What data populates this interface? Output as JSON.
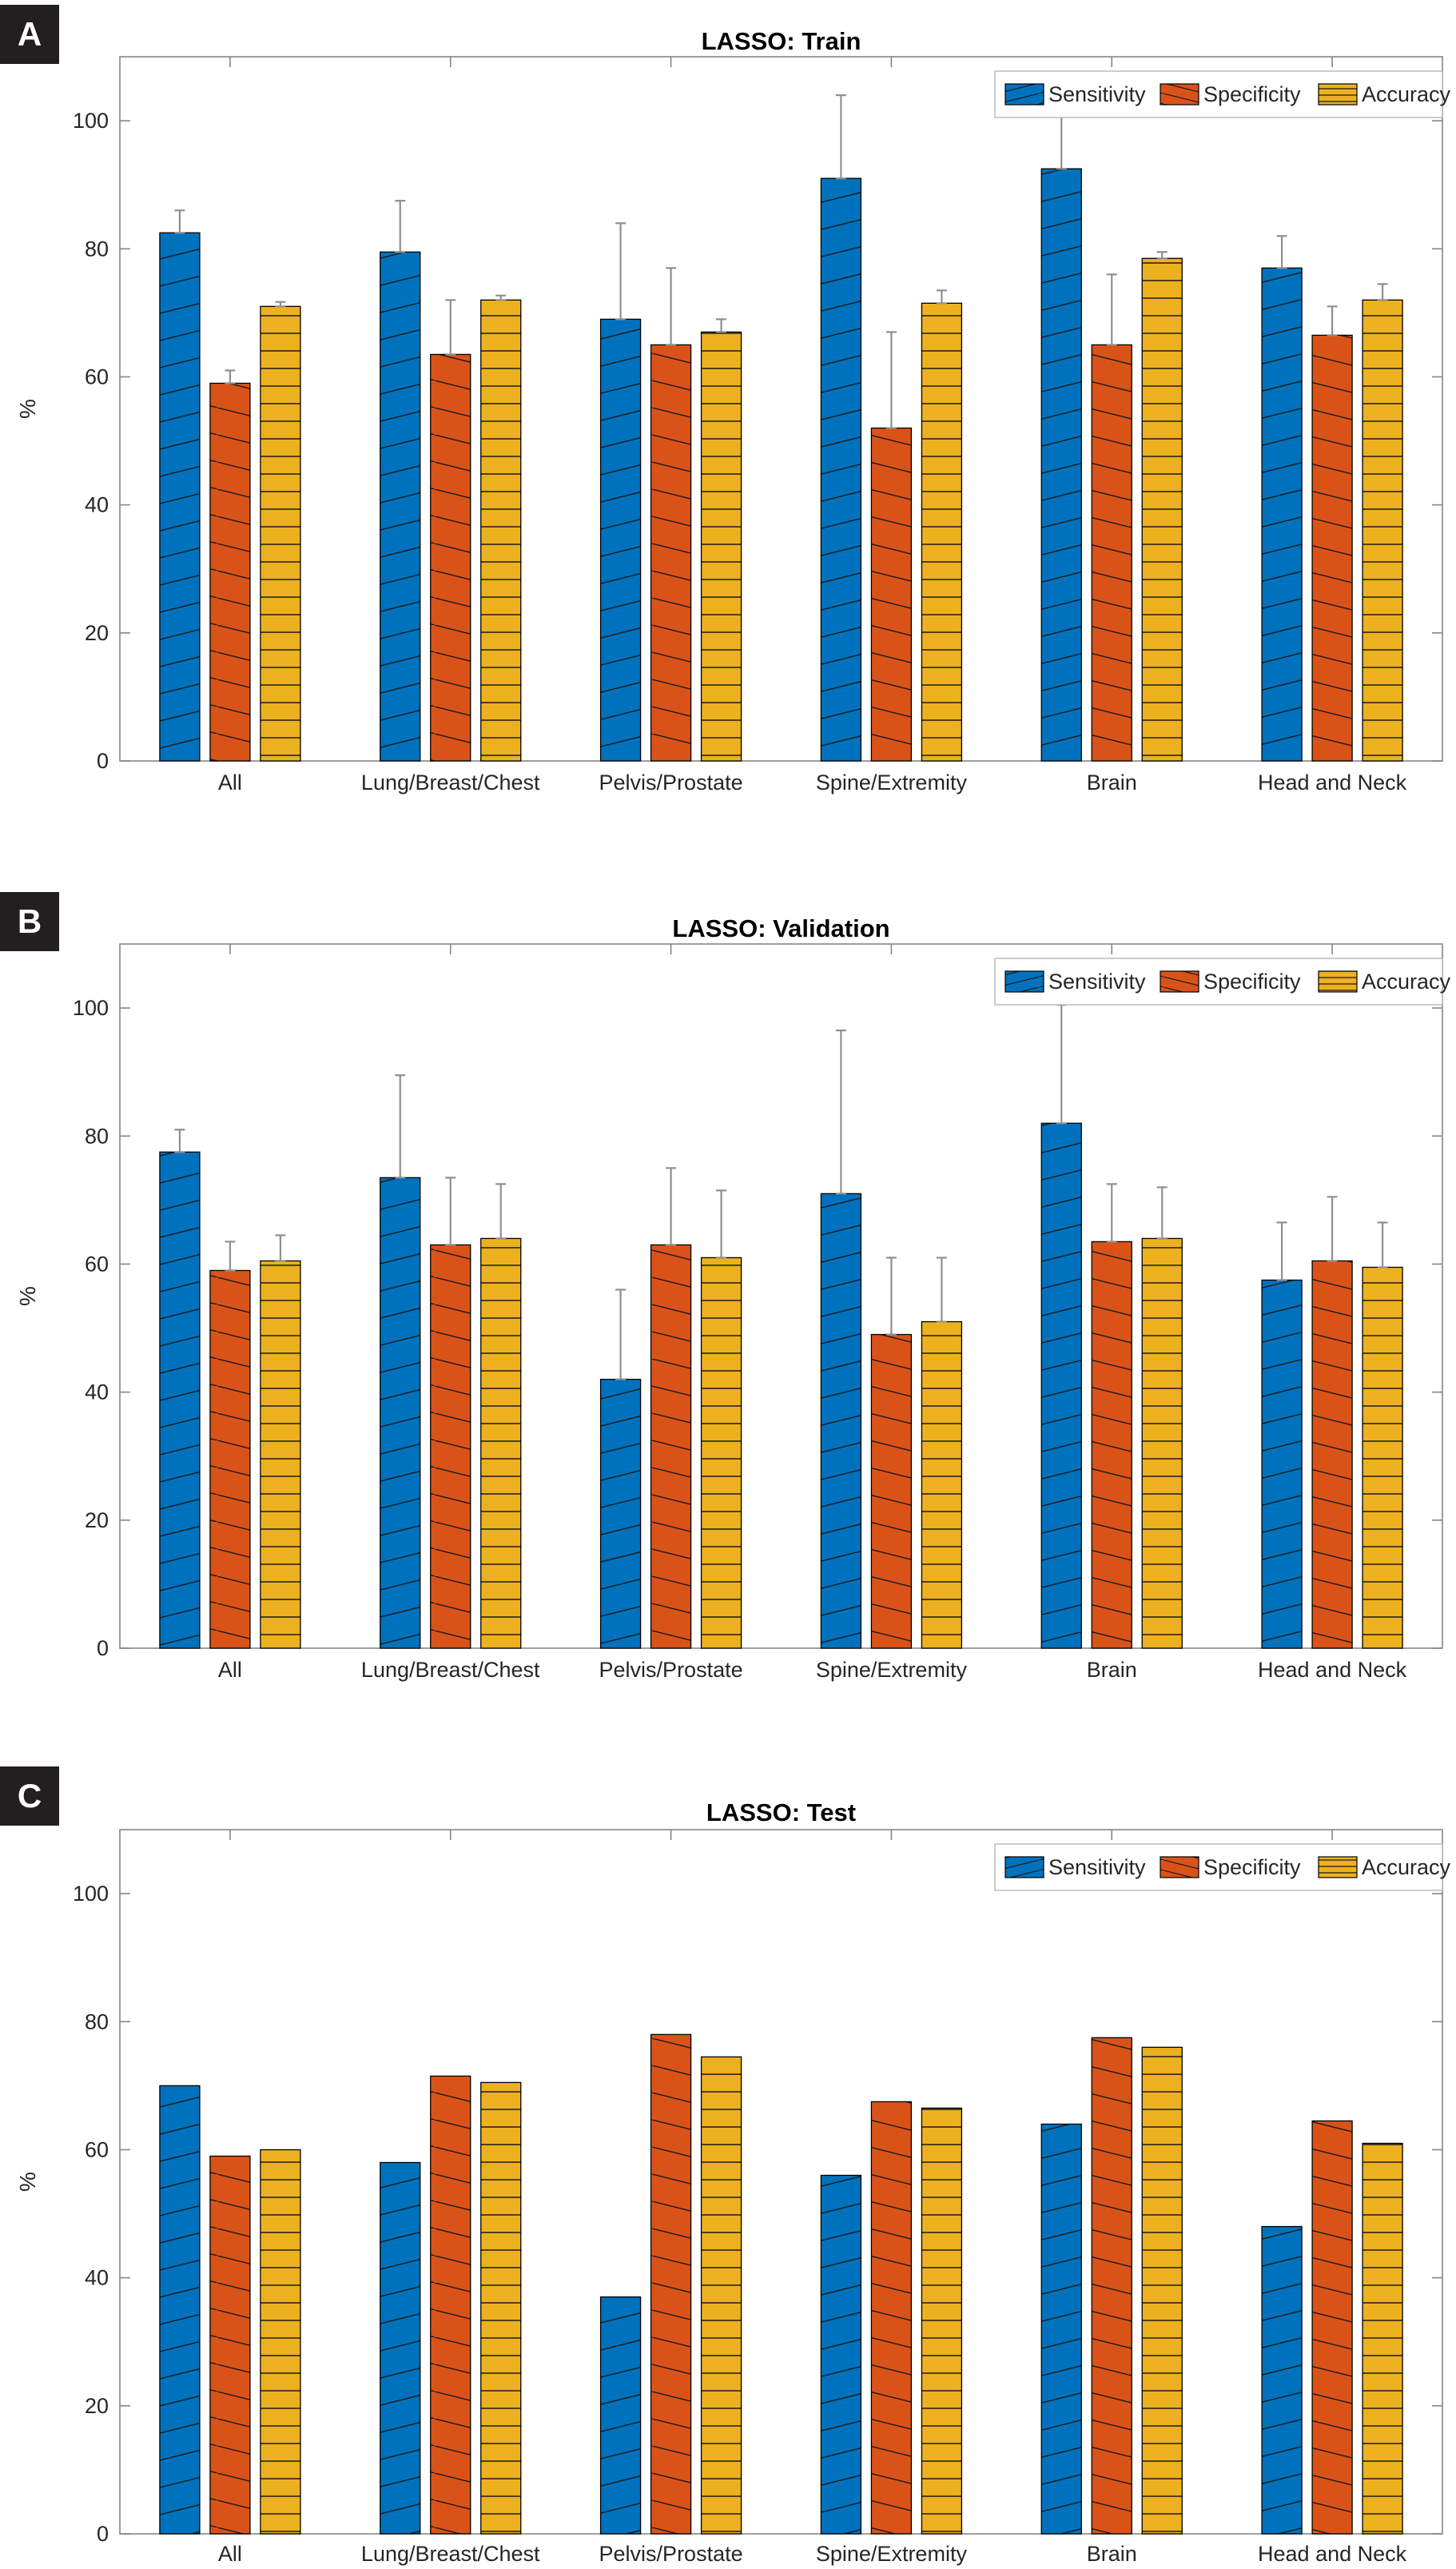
{
  "styles": {
    "axis_color": "#858585",
    "error_color": "#8f8f8f",
    "hatch_color": "#1a1a1a",
    "bar_edge_color": "#000000",
    "text_color": "#262626",
    "legend_border_color": "#b0b0b0",
    "panel_label_bg": "#231f20",
    "panel_label_fg": "#ffffff",
    "series_colors": [
      "#0072BD",
      "#D95319",
      "#EDB120"
    ]
  },
  "panels": [
    {
      "letter": "A",
      "title": "LASSO: Train"
    },
    {
      "letter": "B",
      "title": "LASSO: Validation"
    },
    {
      "letter": "C",
      "title": "LASSO: Test"
    }
  ],
  "chart_data": [
    {
      "type": "bar",
      "title": "LASSO: Train",
      "xlabel": "",
      "ylabel": "%",
      "ylim": [
        0,
        110
      ],
      "yticks": [
        0,
        20,
        40,
        60,
        80,
        100
      ],
      "grid": false,
      "legend_position": "top-right",
      "error_bars": true,
      "categories": [
        "All",
        "Lung/Breast/Chest",
        "Pelvis/Prostate",
        "Spine/Extremity",
        "Brain",
        "Head and Neck"
      ],
      "series": [
        {
          "name": "Sensitivity",
          "color": "#0072BD",
          "hatch": "diag-up",
          "values": [
            82.5,
            79.5,
            69,
            91,
            92.5,
            77
          ],
          "errors": [
            3.5,
            8,
            15,
            13,
            8.5,
            5
          ]
        },
        {
          "name": "Specificity",
          "color": "#D95319",
          "hatch": "diag-down",
          "values": [
            59,
            63.5,
            65,
            52,
            65,
            66.5
          ],
          "errors": [
            2,
            8.5,
            12,
            15,
            11,
            4.5
          ]
        },
        {
          "name": "Accuracy",
          "color": "#EDB120",
          "hatch": "horizontal",
          "values": [
            71,
            72,
            67,
            71.5,
            78.5,
            72
          ],
          "errors": [
            0.7,
            0.7,
            2,
            2,
            1,
            2.5
          ]
        }
      ]
    },
    {
      "type": "bar",
      "title": "LASSO: Validation",
      "xlabel": "",
      "ylabel": "%",
      "ylim": [
        0,
        110
      ],
      "yticks": [
        0,
        20,
        40,
        60,
        80,
        100
      ],
      "grid": false,
      "legend_position": "top-right",
      "error_bars": true,
      "categories": [
        "All",
        "Lung/Breast/Chest",
        "Pelvis/Prostate",
        "Spine/Extremity",
        "Brain",
        "Head and Neck"
      ],
      "series": [
        {
          "name": "Sensitivity",
          "color": "#0072BD",
          "hatch": "diag-up",
          "values": [
            77.5,
            73.5,
            42,
            71,
            82,
            57.5
          ],
          "errors": [
            3.5,
            16,
            14,
            25.5,
            18.5,
            9
          ]
        },
        {
          "name": "Specificity",
          "color": "#D95319",
          "hatch": "diag-down",
          "values": [
            59,
            63,
            63,
            49,
            63.5,
            60.5
          ],
          "errors": [
            4.5,
            10.5,
            12,
            12,
            9,
            10
          ]
        },
        {
          "name": "Accuracy",
          "color": "#EDB120",
          "hatch": "horizontal",
          "values": [
            60.5,
            64,
            61,
            51,
            64,
            59.5
          ],
          "errors": [
            4,
            8.5,
            10.5,
            10,
            8,
            7
          ]
        }
      ]
    },
    {
      "type": "bar",
      "title": "LASSO: Test",
      "xlabel": "",
      "ylabel": "%",
      "ylim": [
        0,
        110
      ],
      "yticks": [
        0,
        20,
        40,
        60,
        80,
        100
      ],
      "grid": false,
      "legend_position": "top-right",
      "error_bars": false,
      "categories": [
        "All",
        "Lung/Breast/Chest",
        "Pelvis/Prostate",
        "Spine/Extremity",
        "Brain",
        "Head and Neck"
      ],
      "series": [
        {
          "name": "Sensitivity",
          "color": "#0072BD",
          "hatch": "diag-up",
          "values": [
            70,
            58,
            37,
            56,
            64,
            48
          ]
        },
        {
          "name": "Specificity",
          "color": "#D95319",
          "hatch": "diag-down",
          "values": [
            59,
            71.5,
            78,
            67.5,
            77.5,
            64.5
          ]
        },
        {
          "name": "Accuracy",
          "color": "#EDB120",
          "hatch": "horizontal",
          "values": [
            60,
            70.5,
            74.5,
            66.5,
            76,
            61
          ]
        }
      ]
    }
  ]
}
